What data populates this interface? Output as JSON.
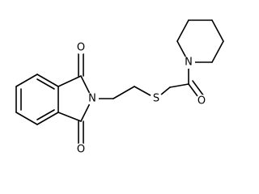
{
  "atoms": [
    {
      "label": "O"
    },
    {
      "label": "O"
    },
    {
      "label": "N"
    },
    {
      "label": "S"
    },
    {
      "label": "O"
    },
    {
      "label": "N"
    }
  ]
}
